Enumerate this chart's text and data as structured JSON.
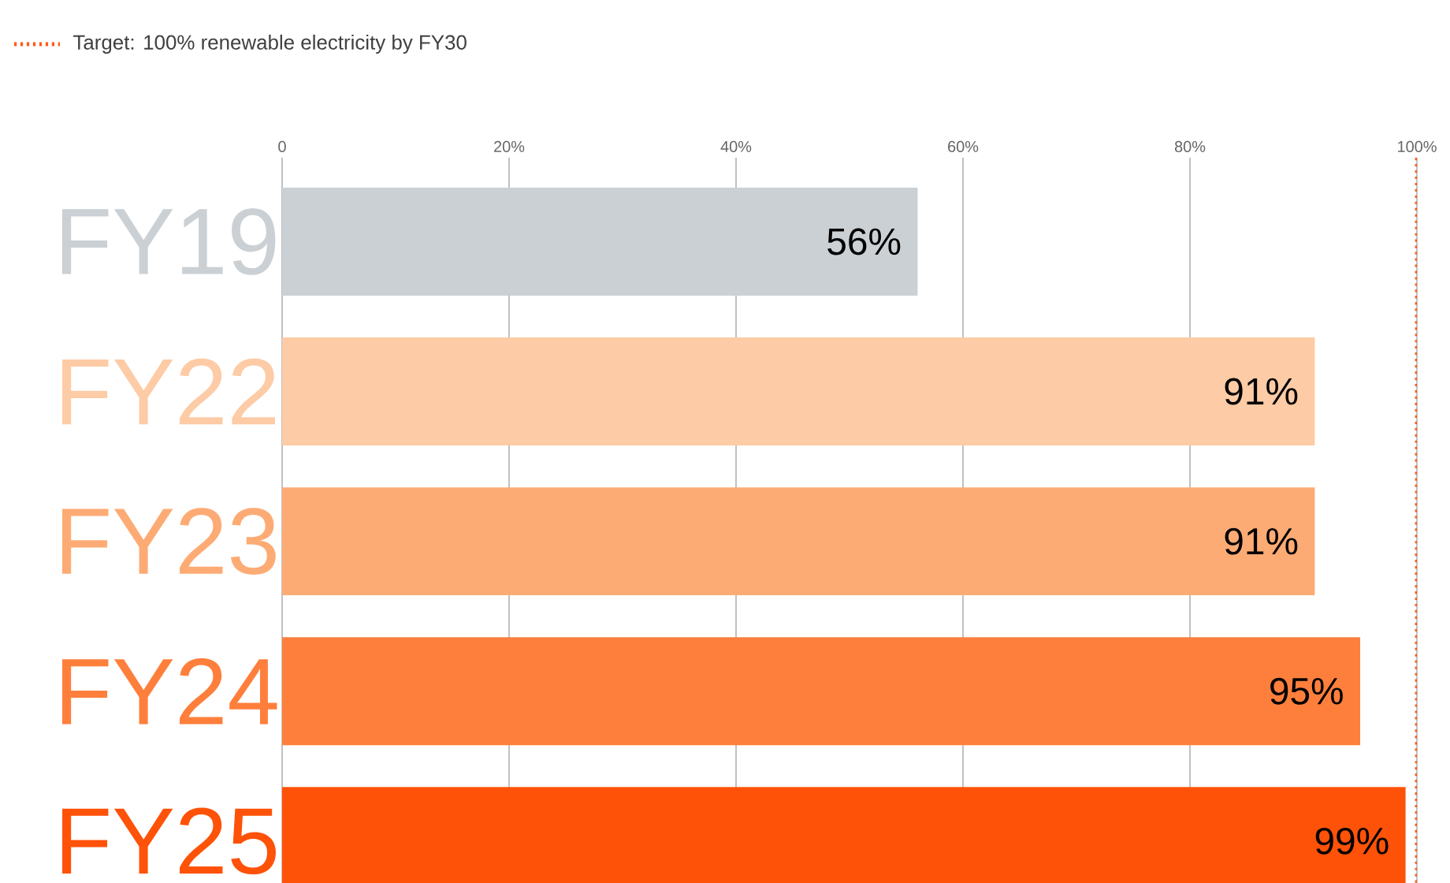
{
  "chart_data": {
    "type": "bar",
    "orientation": "horizontal",
    "categories": [
      "FY19",
      "FY22",
      "FY23",
      "FY24",
      "FY25"
    ],
    "values": [
      56,
      91,
      91,
      95,
      99
    ],
    "value_labels": [
      "56%",
      "91%",
      "91%",
      "95%",
      "99%"
    ],
    "colors": [
      "#cbd0d4",
      "#fdcba5",
      "#fdab74",
      "#fe7f3c",
      "#fe5209"
    ],
    "xlim": [
      0,
      100
    ],
    "xticks": [
      0,
      {
        "value": 20,
        "label": "20%"
      },
      {
        "value": 40,
        "label": "40%"
      },
      {
        "value": 60,
        "label": "60%"
      },
      {
        "value": 80,
        "label": "80%"
      },
      {
        "value": 100,
        "label": "100%"
      }
    ],
    "grid": "x",
    "ref_lines": [
      {
        "axis": "x",
        "value": 100,
        "label": "Target: 100% renewable electricity by FY30",
        "color": "#fe5a14",
        "line_style": "dotted"
      }
    ]
  }
}
